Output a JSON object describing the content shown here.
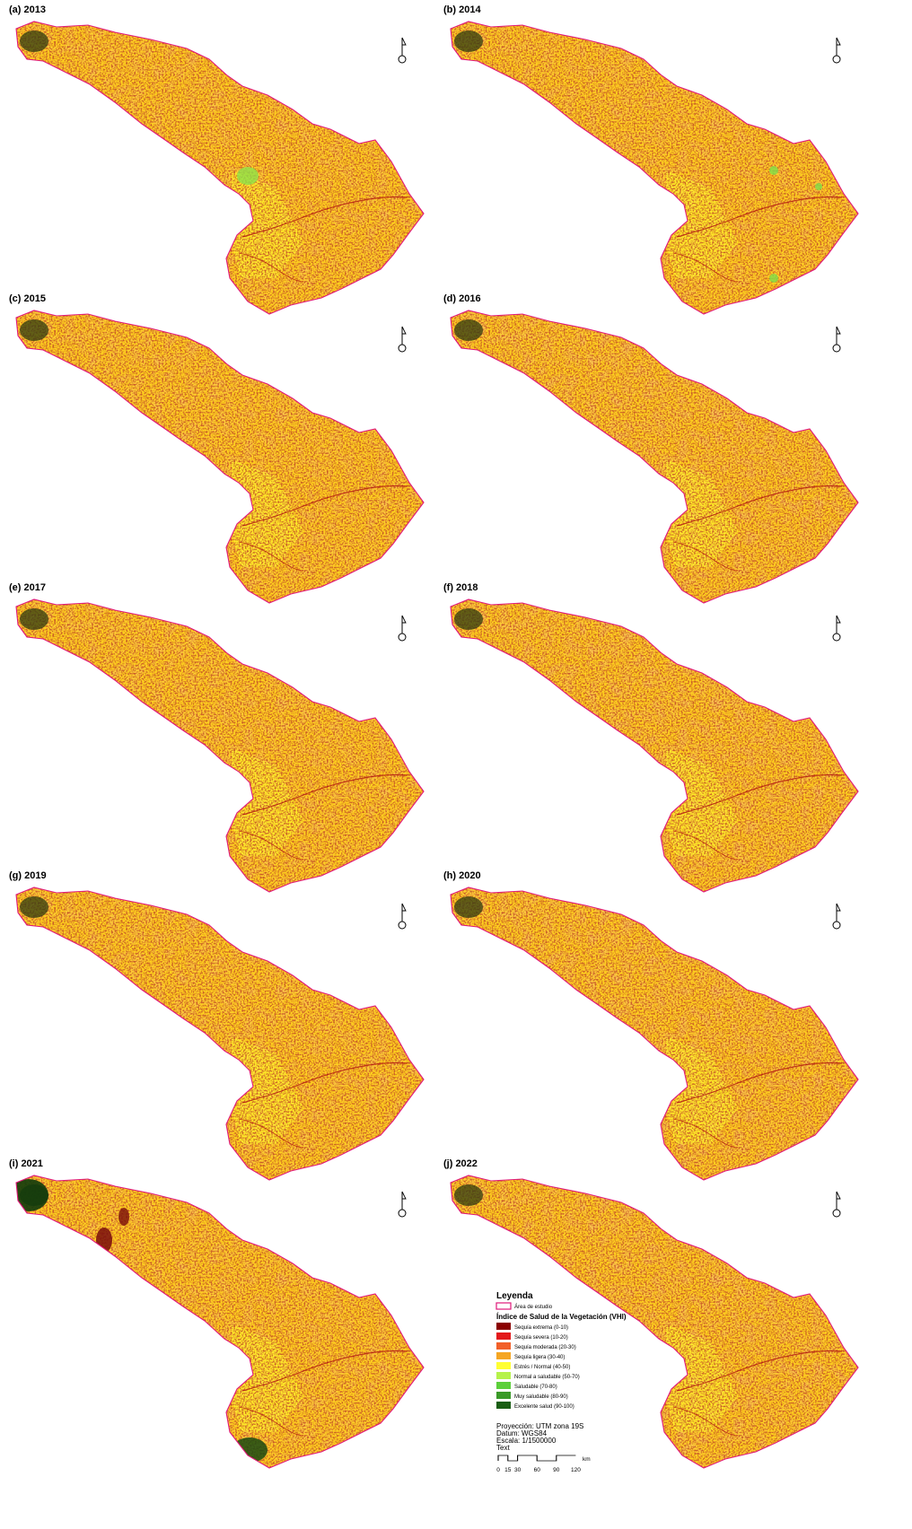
{
  "panels": [
    {
      "label": "(a) 2013",
      "variant": "base"
    },
    {
      "label": "(b) 2014",
      "variant": "green-spots"
    },
    {
      "label": "(c) 2015",
      "variant": "base"
    },
    {
      "label": "(d) 2016",
      "variant": "drier"
    },
    {
      "label": "(e) 2017",
      "variant": "base"
    },
    {
      "label": "(f) 2018",
      "variant": "drier"
    },
    {
      "label": "(g) 2019",
      "variant": "base"
    },
    {
      "label": "(h) 2020",
      "variant": "drier"
    },
    {
      "label": "(i) 2021",
      "variant": "wet-west"
    },
    {
      "label": "(j) 2022",
      "variant": "drier"
    }
  ],
  "legend": {
    "title": "Leyenda",
    "study_area_label": "Área de estudio",
    "study_area_color": "#e0187a",
    "index_title": "Índice de Salud de la Vegetación (VHI)",
    "classes": [
      {
        "label": "Sequía extrema (0-10)",
        "color": "#8b0000"
      },
      {
        "label": "Sequía severa (10-20)",
        "color": "#e31a1c"
      },
      {
        "label": "Sequía moderada (20-30)",
        "color": "#f2602a"
      },
      {
        "label": "Sequía ligera (30-40)",
        "color": "#f5a623"
      },
      {
        "label": "Estrés / Normal (40-50)",
        "color": "#ffff33"
      },
      {
        "label": "Normal a saludable (50-70)",
        "color": "#b6f24b"
      },
      {
        "label": "Saludable (70-80)",
        "color": "#5ccf3a"
      },
      {
        "label": "Muy saludable (80-90)",
        "color": "#3a9a28"
      },
      {
        "label": "Excelente salud (90-100)",
        "color": "#1a5e14"
      }
    ],
    "projection": "Proyección: UTM zona 19S",
    "datum": "Datum: WGS84",
    "scale": "Escala: 1/1500000",
    "extra": "Text",
    "scale_ticks": [
      "0",
      "15",
      "30",
      "60",
      "90",
      "120"
    ],
    "scale_unit": "km"
  }
}
